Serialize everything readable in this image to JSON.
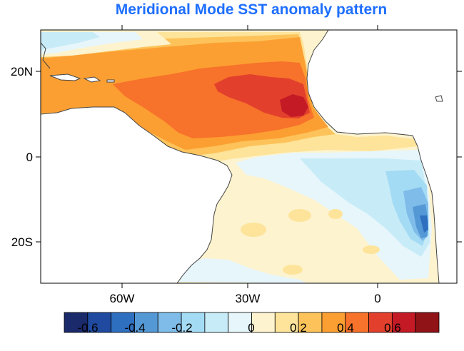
{
  "map": {
    "title": "Meridional Mode SST anomaly pattern",
    "lon_ticks": [
      "60W",
      "30W",
      "0"
    ],
    "lat_ticks": [
      "20N",
      "0",
      "20S"
    ],
    "land_color": "#ffffff",
    "coast_color": "#444444"
  },
  "colorbar": {
    "colors": [
      "#1b2a6b",
      "#1f4aa0",
      "#2f6fc0",
      "#5498d6",
      "#7fbce9",
      "#a4dbf4",
      "#c8ecf7",
      "#e7f6fb",
      "#fdf3cf",
      "#fde49a",
      "#fdc35a",
      "#fc9f32",
      "#f7722a",
      "#e2402c",
      "#c41a26",
      "#901317"
    ],
    "labels": [
      "-0.6",
      "-0.4",
      "-0.2",
      "0",
      "0.2",
      "0.4",
      "0.6"
    ]
  }
}
